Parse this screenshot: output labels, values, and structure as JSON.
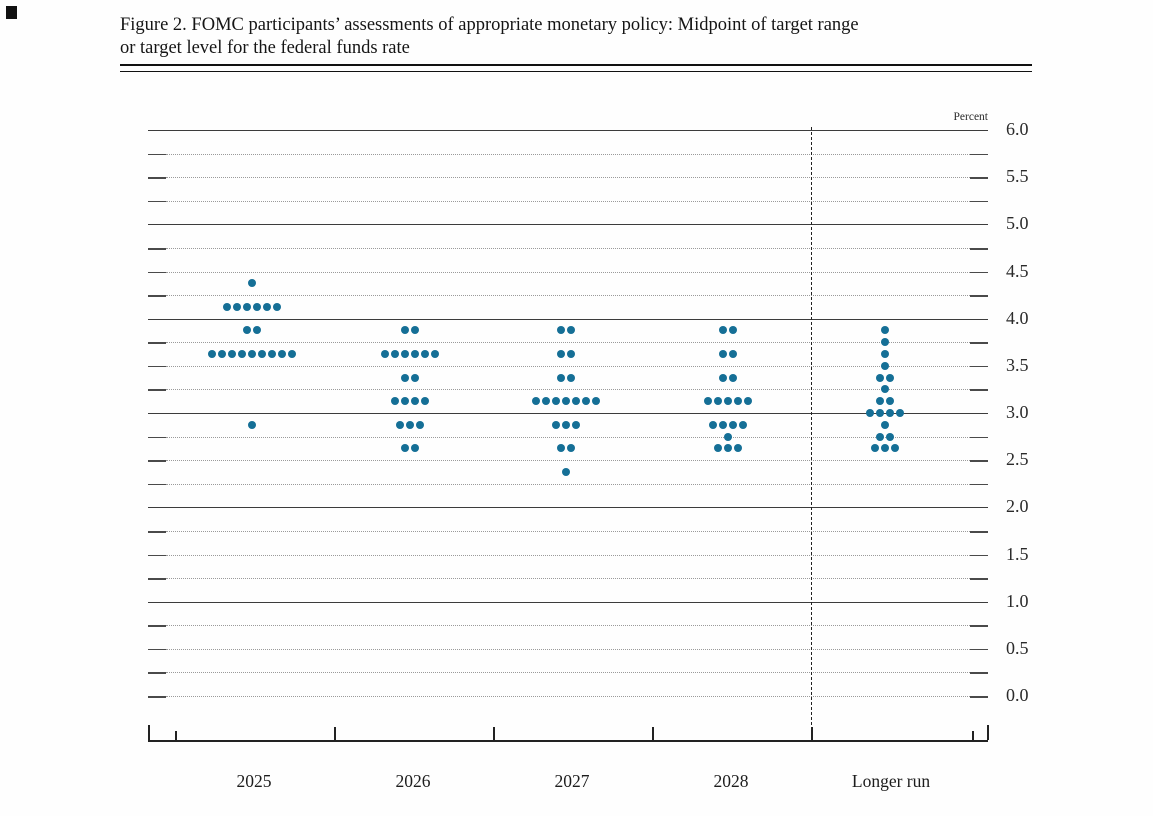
{
  "figure": {
    "title_line1": "Figure 2. FOMC participants’ assessments of appropriate monetary policy: Midpoint of target range",
    "title_line2": "or target level for the federal funds rate"
  },
  "chart_data": {
    "type": "scatter",
    "subtype": "fomc-dot-plot",
    "title": "Figure 2. FOMC participants’ assessments of appropriate monetary policy: Midpoint of target range or target level for the federal funds rate",
    "unit_label": "Percent",
    "categories": [
      "2025",
      "2026",
      "2027",
      "2028",
      "Longer run"
    ],
    "ylim": [
      0.0,
      6.0
    ],
    "ytick_labels": [
      "6.0",
      "5.5",
      "5.0",
      "4.5",
      "4.0",
      "3.5",
      "3.0",
      "2.5",
      "2.0",
      "1.5",
      "1.0",
      "0.5",
      "0.0"
    ],
    "grid": {
      "solid_at": [
        1,
        2,
        3,
        4,
        5,
        6
      ],
      "dotted_step": 0.25,
      "legend_position": "none"
    },
    "dot_color": "#156f96",
    "participants_per_period": 19,
    "dots": {
      "2025": [
        {
          "rate": 4.375,
          "count": 1
        },
        {
          "rate": 4.125,
          "count": 6
        },
        {
          "rate": 3.875,
          "count": 2
        },
        {
          "rate": 3.625,
          "count": 9
        },
        {
          "rate": 2.875,
          "count": 1
        }
      ],
      "2026": [
        {
          "rate": 3.875,
          "count": 2
        },
        {
          "rate": 3.625,
          "count": 6
        },
        {
          "rate": 3.375,
          "count": 2
        },
        {
          "rate": 3.125,
          "count": 4
        },
        {
          "rate": 2.875,
          "count": 3
        },
        {
          "rate": 2.625,
          "count": 2
        }
      ],
      "2027": [
        {
          "rate": 3.875,
          "count": 2
        },
        {
          "rate": 3.625,
          "count": 2
        },
        {
          "rate": 3.375,
          "count": 2
        },
        {
          "rate": 3.125,
          "count": 7
        },
        {
          "rate": 2.875,
          "count": 3
        },
        {
          "rate": 2.625,
          "count": 2
        },
        {
          "rate": 2.375,
          "count": 1
        }
      ],
      "2028": [
        {
          "rate": 3.875,
          "count": 2
        },
        {
          "rate": 3.625,
          "count": 2
        },
        {
          "rate": 3.375,
          "count": 2
        },
        {
          "rate": 3.125,
          "count": 5
        },
        {
          "rate": 2.875,
          "count": 4
        },
        {
          "rate": 2.75,
          "count": 1
        },
        {
          "rate": 2.625,
          "count": 3
        }
      ],
      "Longer run": [
        {
          "rate": 3.875,
          "count": 1
        },
        {
          "rate": 3.75,
          "count": 1
        },
        {
          "rate": 3.625,
          "count": 1
        },
        {
          "rate": 3.5,
          "count": 1
        },
        {
          "rate": 3.375,
          "count": 2
        },
        {
          "rate": 3.25,
          "count": 1
        },
        {
          "rate": 3.125,
          "count": 2
        },
        {
          "rate": 3.0,
          "count": 4
        },
        {
          "rate": 2.875,
          "count": 1
        },
        {
          "rate": 2.75,
          "count": 2
        },
        {
          "rate": 2.625,
          "count": 3
        }
      ]
    },
    "separator_after_category": "2028"
  }
}
